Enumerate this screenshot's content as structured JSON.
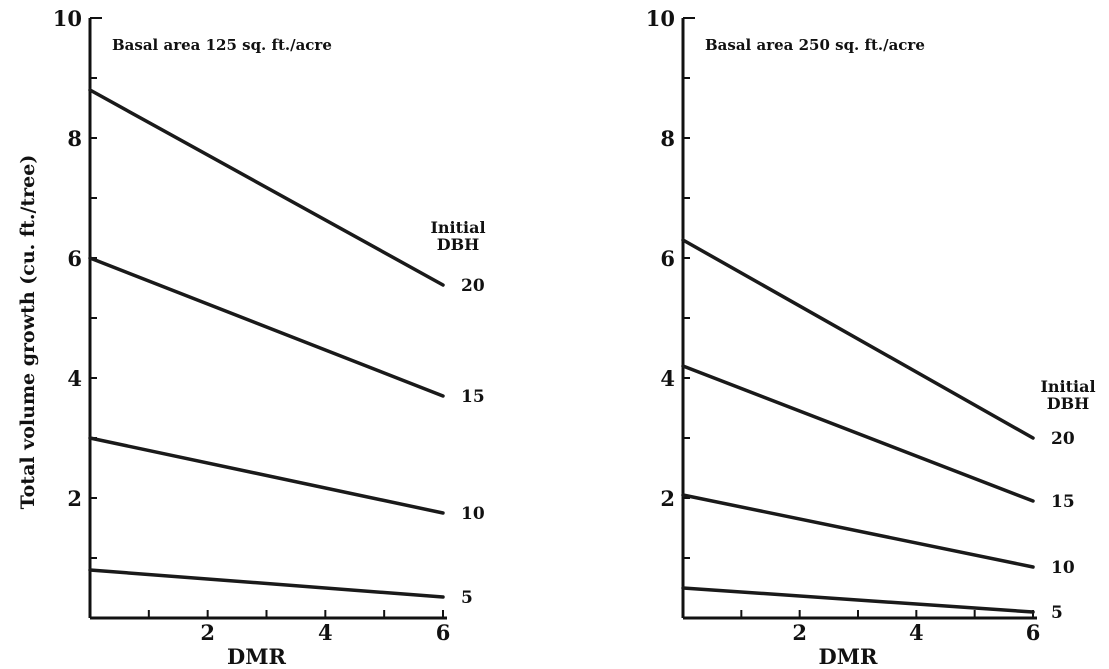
{
  "shared": {
    "ylabel": "Total volume growth (cu. ft./tree)",
    "legend_title_line1": "Initial",
    "legend_title_line2": "DBH"
  },
  "chart_data": [
    {
      "type": "line",
      "title": "Basal area 125 sq. ft./acre",
      "xlabel": "DMR",
      "ylabel": "Total volume growth (cu. ft./tree)",
      "xlim": [
        0,
        6
      ],
      "ylim": [
        0,
        10
      ],
      "xticks": [
        2,
        4,
        6
      ],
      "yticks": [
        2,
        4,
        6,
        8,
        10
      ],
      "grid": false,
      "legend_title": "Initial DBH",
      "series": [
        {
          "name": "20",
          "x": [
            0,
            6
          ],
          "y": [
            8.8,
            5.55
          ]
        },
        {
          "name": "15",
          "x": [
            0,
            6
          ],
          "y": [
            6.0,
            3.7
          ]
        },
        {
          "name": "10",
          "x": [
            0,
            6
          ],
          "y": [
            3.0,
            1.75
          ]
        },
        {
          "name": "5",
          "x": [
            0,
            6
          ],
          "y": [
            0.8,
            0.35
          ]
        }
      ]
    },
    {
      "type": "line",
      "title": "Basal area 250 sq. ft./acre",
      "xlabel": "DMR",
      "ylabel": "",
      "xlim": [
        0,
        6
      ],
      "ylim": [
        0,
        10
      ],
      "xticks": [
        2,
        4,
        6
      ],
      "yticks": [
        2,
        4,
        6,
        8,
        10
      ],
      "grid": false,
      "legend_title": "Initial DBH",
      "series": [
        {
          "name": "20",
          "x": [
            0,
            6
          ],
          "y": [
            6.3,
            3.0
          ]
        },
        {
          "name": "15",
          "x": [
            0,
            6
          ],
          "y": [
            4.2,
            1.95
          ]
        },
        {
          "name": "10",
          "x": [
            0,
            6
          ],
          "y": [
            2.05,
            0.85
          ]
        },
        {
          "name": "5",
          "x": [
            0,
            6
          ],
          "y": [
            0.5,
            0.1
          ]
        }
      ]
    }
  ]
}
